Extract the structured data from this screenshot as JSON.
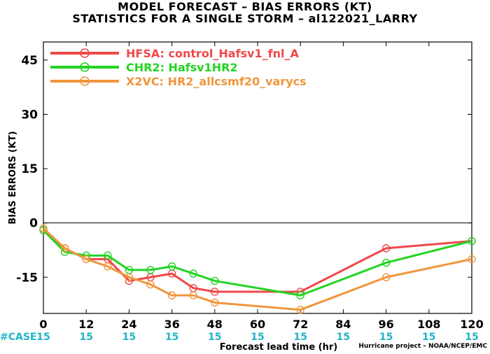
{
  "title_line1": "MODEL FORECAST – BIAS ERRORS (KT)",
  "title_line2": "STATISTICS FOR A SINGLE STORM – al122021_LARRY",
  "footer": "Hurricane project – NOAA/NCEP/EMC",
  "case_label": "#CASE",
  "case_counts": [
    "15",
    "15",
    "15",
    "15",
    "15",
    "15",
    "15",
    "15",
    "15",
    "15",
    "15"
  ],
  "case_color": "#20b4c8",
  "chart_data": {
    "type": "line",
    "xlabel": "Forecast lead time (hr)",
    "ylabel": "BIAS ERRORS (KT)",
    "xlim": [
      0,
      120
    ],
    "ylim": [
      -25,
      50
    ],
    "xticks": [
      0,
      12,
      24,
      36,
      48,
      60,
      72,
      84,
      96,
      108,
      120
    ],
    "yticks": [
      -15,
      0,
      15,
      30,
      45
    ],
    "zero_line": true,
    "legend_position": "top-left",
    "series": [
      {
        "name": "HFSA: control_Hafsv1_fnl_A",
        "color": "#f04848",
        "x": [
          0,
          6,
          12,
          18,
          24,
          30,
          36,
          42,
          48,
          72,
          96,
          120
        ],
        "y": [
          -2,
          -7,
          -10,
          -10,
          -16,
          -15,
          -14,
          -18,
          -19,
          -19,
          -7,
          -5
        ]
      },
      {
        "name": "CHR2: Hafsv1HR2",
        "color": "#22d422",
        "x": [
          0,
          6,
          12,
          18,
          24,
          30,
          36,
          42,
          48,
          72,
          96,
          120
        ],
        "y": [
          -2,
          -8,
          -9,
          -9,
          -13,
          -13,
          -12,
          -14,
          -16,
          -20,
          -11,
          -5
        ]
      },
      {
        "name": "X2VC: HR2_allcsmf20_varycs",
        "color": "#f0963c",
        "x": [
          0,
          6,
          12,
          18,
          24,
          30,
          36,
          42,
          48,
          72,
          96,
          120
        ],
        "y": [
          -1.5,
          -7,
          -10,
          -12,
          -15,
          -17,
          -20,
          -20,
          -22,
          -24,
          -15,
          -10
        ]
      }
    ]
  }
}
